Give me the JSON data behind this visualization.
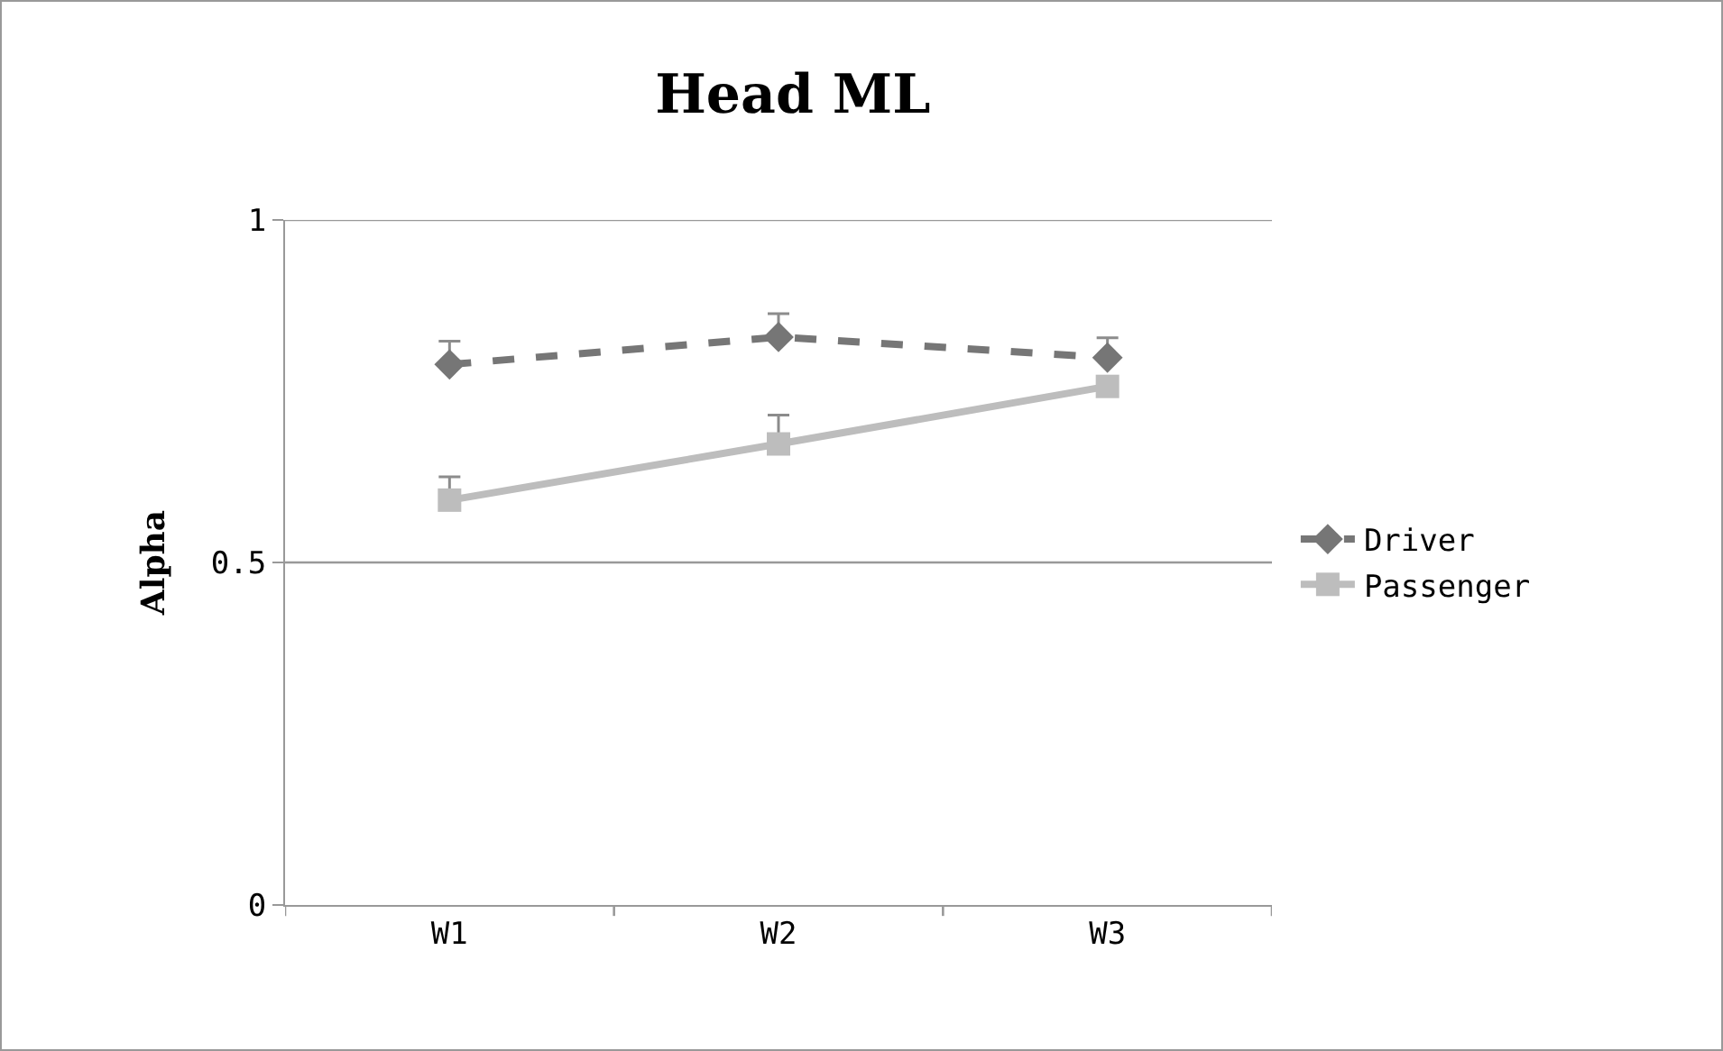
{
  "chart_data": {
    "type": "line",
    "title": "Head ML",
    "ylabel": "Alpha",
    "categories": [
      "W1",
      "W2",
      "W3"
    ],
    "series": [
      {
        "name": "Driver",
        "color": "#767676",
        "values": [
          0.789,
          0.829,
          0.799
        ],
        "marker": "diamond",
        "line_style": "dashed",
        "errors": [
          [
            0.789,
            0.823
          ],
          [
            0.829,
            0.863
          ],
          [
            0.799,
            0.828
          ]
        ]
      },
      {
        "name": "Passenger",
        "color": "#bdbdbd",
        "values": [
          0.591,
          0.673,
          0.757
        ],
        "marker": "square",
        "line_style": "solid",
        "errors": [
          [
            0.591,
            0.625
          ],
          [
            0.673,
            0.715
          ],
          null
        ]
      }
    ],
    "ylim": [
      0,
      1
    ],
    "yticks": [
      0,
      0.5,
      1
    ],
    "grid": "y",
    "legend": "right"
  }
}
